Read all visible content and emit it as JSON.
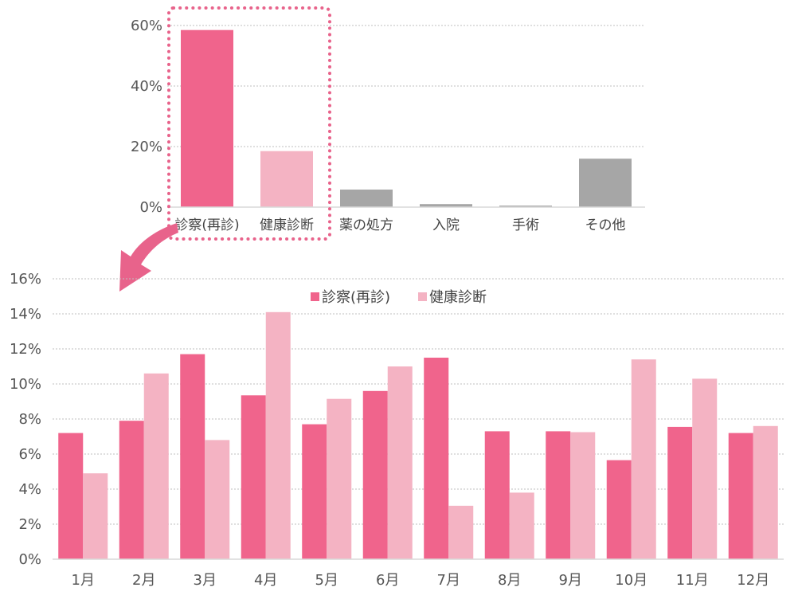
{
  "colors": {
    "primary": "#F0648C",
    "secondary": "#F4B3C3",
    "other": "#A6A6A6",
    "grid": "#BFBFBF",
    "highlight": "#E8638B"
  },
  "chart_data": [
    {
      "type": "bar",
      "categories": [
        "診察(再診)",
        "健康診断",
        "薬の処方",
        "入院",
        "手術",
        "その他"
      ],
      "values": [
        58.5,
        18.5,
        5.8,
        1.0,
        0.5,
        16.0
      ],
      "ylim": [
        0,
        60
      ],
      "yticks": [
        "0%",
        "20%",
        "40%",
        "60%"
      ],
      "yticks_values": [
        0,
        20,
        40,
        60
      ],
      "grid": true,
      "highlighted_categories": [
        "診察(再診)",
        "健康診断"
      ]
    },
    {
      "type": "bar",
      "categories": [
        "1月",
        "2月",
        "3月",
        "4月",
        "5月",
        "6月",
        "7月",
        "8月",
        "9月",
        "10月",
        "11月",
        "12月"
      ],
      "series": [
        {
          "name": "診察(再診)",
          "values": [
            7.2,
            7.9,
            11.7,
            9.35,
            7.7,
            9.6,
            11.5,
            7.3,
            7.3,
            5.65,
            7.55,
            7.2
          ]
        },
        {
          "name": "健康診断",
          "values": [
            4.9,
            10.6,
            6.8,
            14.1,
            9.15,
            11.0,
            3.05,
            3.8,
            7.25,
            11.4,
            10.3,
            7.6
          ]
        }
      ],
      "ylim": [
        0,
        16
      ],
      "yticks": [
        "0%",
        "2%",
        "4%",
        "6%",
        "8%",
        "10%",
        "12%",
        "14%",
        "16%"
      ],
      "yticks_values": [
        0,
        2,
        4,
        6,
        8,
        10,
        12,
        14,
        16
      ],
      "grid": true,
      "legend_position": "top-center"
    }
  ]
}
